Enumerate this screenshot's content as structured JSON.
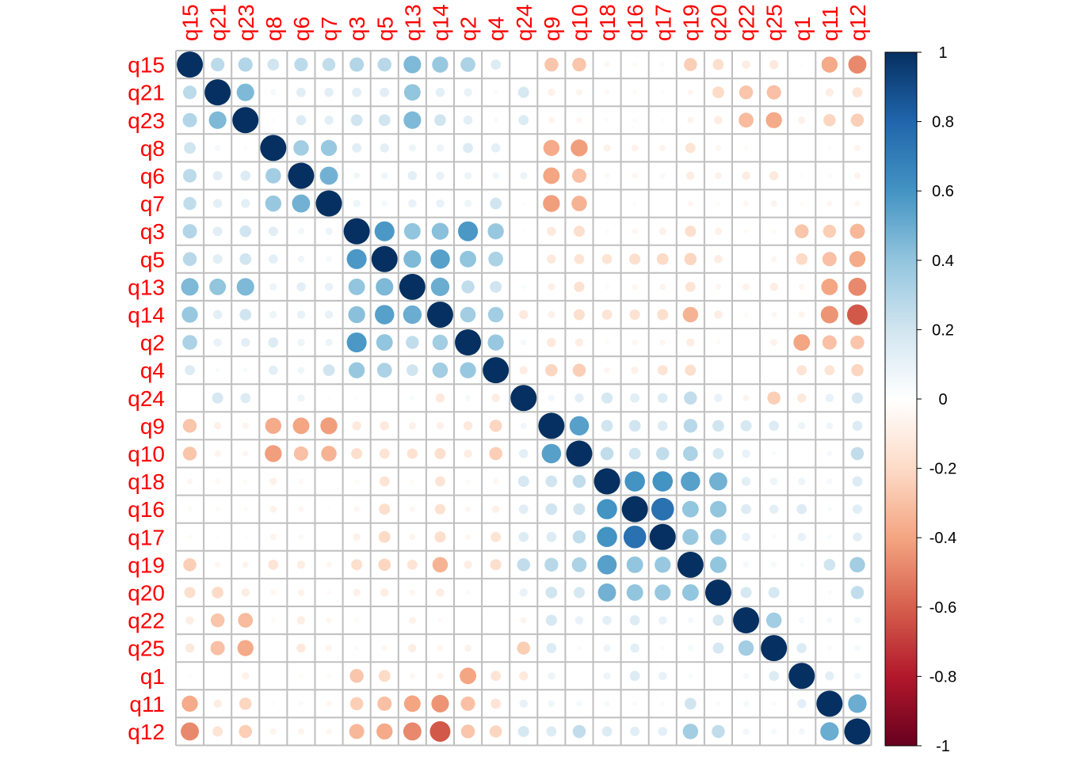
{
  "chart_data": {
    "type": "heatmap",
    "method": "circle",
    "title": "",
    "variables": [
      "q15",
      "q21",
      "q23",
      "q8",
      "q6",
      "q7",
      "q3",
      "q5",
      "q13",
      "q14",
      "q2",
      "q4",
      "q24",
      "q9",
      "q10",
      "q18",
      "q16",
      "q17",
      "q19",
      "q20",
      "q22",
      "q25",
      "q1",
      "q11",
      "q12"
    ],
    "matrix": [
      [
        1.0,
        0.27,
        0.3,
        0.2,
        0.27,
        0.25,
        0.3,
        0.28,
        0.45,
        0.38,
        0.32,
        0.15,
        0.0,
        -0.28,
        -0.28,
        -0.05,
        -0.03,
        -0.03,
        -0.25,
        -0.18,
        -0.1,
        -0.12,
        -0.02,
        -0.38,
        -0.48
      ],
      [
        0.27,
        1.0,
        0.45,
        0.05,
        0.13,
        0.12,
        0.13,
        0.13,
        0.4,
        0.12,
        0.1,
        0.03,
        0.18,
        -0.08,
        -0.06,
        -0.04,
        -0.03,
        -0.02,
        -0.05,
        -0.2,
        -0.28,
        -0.3,
        0.0,
        -0.1,
        -0.15
      ],
      [
        0.3,
        0.45,
        1.0,
        0.02,
        0.15,
        0.12,
        0.2,
        0.2,
        0.45,
        0.2,
        0.12,
        0.03,
        0.15,
        -0.06,
        -0.05,
        -0.03,
        -0.03,
        -0.02,
        -0.06,
        -0.1,
        -0.32,
        -0.38,
        -0.08,
        -0.22,
        -0.25
      ],
      [
        0.2,
        0.05,
        0.02,
        1.0,
        0.35,
        0.38,
        0.13,
        0.12,
        0.08,
        0.08,
        0.15,
        0.12,
        0.0,
        -0.38,
        -0.42,
        -0.08,
        -0.07,
        -0.06,
        -0.15,
        -0.05,
        -0.03,
        0.0,
        0.0,
        -0.02,
        -0.06
      ],
      [
        0.27,
        0.13,
        0.15,
        0.35,
        1.0,
        0.48,
        0.06,
        0.07,
        0.12,
        0.1,
        0.08,
        0.07,
        0.08,
        -0.4,
        -0.3,
        -0.04,
        -0.05,
        -0.04,
        -0.1,
        -0.07,
        -0.1,
        -0.12,
        -0.02,
        -0.03,
        -0.06
      ],
      [
        0.25,
        0.12,
        0.12,
        0.38,
        0.48,
        1.0,
        0.08,
        0.05,
        0.1,
        0.1,
        0.08,
        0.2,
        0.02,
        -0.42,
        -0.35,
        0.0,
        -0.02,
        0.0,
        -0.05,
        -0.03,
        -0.05,
        -0.06,
        -0.03,
        -0.05,
        -0.05
      ],
      [
        0.3,
        0.13,
        0.2,
        0.13,
        0.06,
        0.08,
        1.0,
        0.58,
        0.4,
        0.42,
        0.58,
        0.38,
        0.02,
        -0.12,
        -0.18,
        -0.03,
        -0.05,
        -0.08,
        -0.18,
        -0.08,
        -0.03,
        -0.03,
        -0.28,
        -0.25,
        -0.33
      ],
      [
        0.28,
        0.13,
        0.2,
        0.12,
        0.07,
        0.05,
        0.58,
        1.0,
        0.45,
        0.55,
        0.4,
        0.32,
        0.0,
        -0.12,
        -0.15,
        -0.15,
        -0.18,
        -0.2,
        -0.22,
        -0.1,
        0.0,
        -0.05,
        -0.2,
        -0.3,
        -0.38
      ],
      [
        0.45,
        0.4,
        0.45,
        0.08,
        0.12,
        0.1,
        0.4,
        0.45,
        1.0,
        0.5,
        0.25,
        0.2,
        0.03,
        -0.08,
        -0.16,
        -0.03,
        -0.05,
        -0.06,
        -0.15,
        -0.05,
        -0.07,
        -0.1,
        -0.05,
        -0.4,
        -0.48
      ],
      [
        0.38,
        0.12,
        0.2,
        0.08,
        0.1,
        0.1,
        0.42,
        0.55,
        0.5,
        1.0,
        0.35,
        0.35,
        -0.12,
        -0.08,
        -0.18,
        -0.15,
        -0.16,
        -0.18,
        -0.35,
        -0.1,
        -0.03,
        -0.05,
        -0.06,
        -0.45,
        -0.62
      ],
      [
        0.32,
        0.1,
        0.12,
        0.15,
        0.08,
        0.08,
        0.58,
        0.4,
        0.25,
        0.35,
        1.0,
        0.38,
        0.05,
        -0.12,
        -0.1,
        -0.03,
        -0.05,
        -0.05,
        -0.1,
        -0.03,
        0.0,
        -0.07,
        -0.4,
        -0.3,
        -0.28
      ],
      [
        0.15,
        0.03,
        0.03,
        0.12,
        0.07,
        0.2,
        0.38,
        0.32,
        0.2,
        0.35,
        0.38,
        1.0,
        -0.1,
        -0.22,
        -0.25,
        -0.05,
        -0.08,
        -0.15,
        -0.18,
        0.0,
        0.0,
        0.0,
        -0.15,
        -0.15,
        -0.22
      ],
      [
        0.0,
        0.18,
        0.15,
        0.0,
        0.08,
        0.02,
        0.02,
        0.0,
        0.03,
        -0.12,
        0.05,
        -0.1,
        1.0,
        0.06,
        0.12,
        0.18,
        0.13,
        0.15,
        0.25,
        0.1,
        -0.06,
        -0.25,
        -0.12,
        0.1,
        0.18
      ],
      [
        -0.28,
        -0.08,
        -0.06,
        -0.38,
        -0.4,
        -0.42,
        -0.12,
        -0.12,
        -0.08,
        -0.08,
        -0.12,
        -0.22,
        0.06,
        1.0,
        0.55,
        0.2,
        0.2,
        0.15,
        0.28,
        0.2,
        0.18,
        0.15,
        0.08,
        0.07,
        0.15
      ],
      [
        -0.28,
        -0.06,
        -0.05,
        -0.42,
        -0.3,
        -0.35,
        -0.18,
        -0.15,
        -0.16,
        -0.18,
        -0.1,
        -0.25,
        0.12,
        0.55,
        1.0,
        0.25,
        0.2,
        0.25,
        0.32,
        0.18,
        0.1,
        0.03,
        0.0,
        0.05,
        0.25
      ],
      [
        -0.05,
        -0.04,
        -0.03,
        -0.08,
        -0.04,
        0.0,
        -0.03,
        -0.15,
        -0.03,
        -0.15,
        -0.03,
        -0.05,
        0.18,
        0.2,
        0.25,
        1.0,
        0.6,
        0.6,
        0.55,
        0.48,
        0.12,
        0.08,
        0.08,
        0.05,
        0.15
      ],
      [
        -0.03,
        -0.03,
        -0.03,
        -0.07,
        -0.05,
        -0.02,
        -0.05,
        -0.18,
        -0.05,
        -0.16,
        -0.05,
        -0.08,
        0.13,
        0.2,
        0.2,
        0.6,
        1.0,
        0.75,
        0.4,
        0.4,
        0.15,
        0.12,
        0.15,
        0.03,
        0.13
      ],
      [
        -0.03,
        -0.02,
        -0.02,
        -0.06,
        -0.04,
        0.0,
        -0.08,
        -0.2,
        -0.06,
        -0.18,
        -0.05,
        -0.15,
        0.15,
        0.15,
        0.25,
        0.6,
        0.75,
        1.0,
        0.38,
        0.38,
        0.1,
        0.03,
        0.1,
        0.03,
        0.12
      ],
      [
        -0.25,
        -0.05,
        -0.06,
        -0.15,
        -0.1,
        -0.05,
        -0.18,
        -0.22,
        -0.15,
        -0.35,
        -0.1,
        -0.18,
        0.25,
        0.28,
        0.32,
        0.55,
        0.4,
        0.38,
        1.0,
        0.4,
        0.05,
        0.05,
        0.03,
        0.2,
        0.35
      ],
      [
        -0.18,
        -0.2,
        -0.1,
        -0.05,
        -0.07,
        -0.03,
        -0.08,
        -0.1,
        -0.05,
        -0.1,
        -0.03,
        0.0,
        0.1,
        0.2,
        0.18,
        0.48,
        0.4,
        0.38,
        0.4,
        1.0,
        0.18,
        0.18,
        0.0,
        0.03,
        0.25
      ],
      [
        -0.1,
        -0.28,
        -0.32,
        -0.03,
        -0.1,
        -0.05,
        -0.03,
        0.0,
        -0.07,
        -0.03,
        0.0,
        0.0,
        -0.06,
        0.18,
        0.1,
        0.12,
        0.15,
        0.1,
        0.05,
        0.18,
        1.0,
        0.35,
        0.05,
        0.05,
        0.06
      ],
      [
        -0.12,
        -0.3,
        -0.38,
        0.0,
        -0.12,
        -0.06,
        -0.03,
        -0.05,
        -0.1,
        -0.05,
        -0.07,
        0.0,
        -0.25,
        0.15,
        0.03,
        0.08,
        0.12,
        0.03,
        0.05,
        0.18,
        0.35,
        1.0,
        0.15,
        0.03,
        0.05
      ],
      [
        -0.02,
        0.0,
        -0.08,
        0.0,
        -0.02,
        -0.03,
        -0.28,
        -0.2,
        -0.05,
        -0.06,
        -0.4,
        -0.15,
        -0.12,
        0.08,
        0.0,
        0.08,
        0.15,
        0.1,
        0.03,
        0.0,
        0.05,
        0.15,
        1.0,
        0.12,
        0.06
      ],
      [
        -0.38,
        -0.1,
        -0.22,
        -0.02,
        -0.03,
        -0.05,
        -0.25,
        -0.3,
        -0.4,
        -0.45,
        -0.3,
        -0.15,
        0.1,
        0.07,
        0.05,
        0.05,
        0.03,
        0.03,
        0.2,
        0.03,
        0.05,
        0.03,
        0.12,
        1.0,
        0.5
      ],
      [
        -0.48,
        -0.15,
        -0.25,
        -0.06,
        -0.06,
        -0.05,
        -0.33,
        -0.38,
        -0.48,
        -0.62,
        -0.28,
        -0.22,
        0.18,
        0.15,
        0.25,
        0.15,
        0.13,
        0.12,
        0.35,
        0.25,
        0.06,
        0.05,
        0.06,
        0.5,
        1.0
      ]
    ],
    "colorbar": {
      "range": [
        -1,
        1
      ],
      "tick_labels": [
        "1",
        "0.8",
        "0.6",
        "0.4",
        "0.2",
        "0",
        "-0.2",
        "-0.4",
        "-0.6",
        "-0.8",
        "-1"
      ],
      "tick_values": [
        1,
        0.8,
        0.6,
        0.4,
        0.2,
        0,
        -0.2,
        -0.4,
        -0.6,
        -0.8,
        -1
      ]
    },
    "label_color": "#ff0000",
    "grid_color": "#bfbfbf",
    "color_scale": [
      "#67001f",
      "#b2182b",
      "#d6604d",
      "#f4a582",
      "#fddbc7",
      "#ffffff",
      "#d1e5f0",
      "#92c5de",
      "#4393c3",
      "#2166ac",
      "#053061"
    ]
  }
}
